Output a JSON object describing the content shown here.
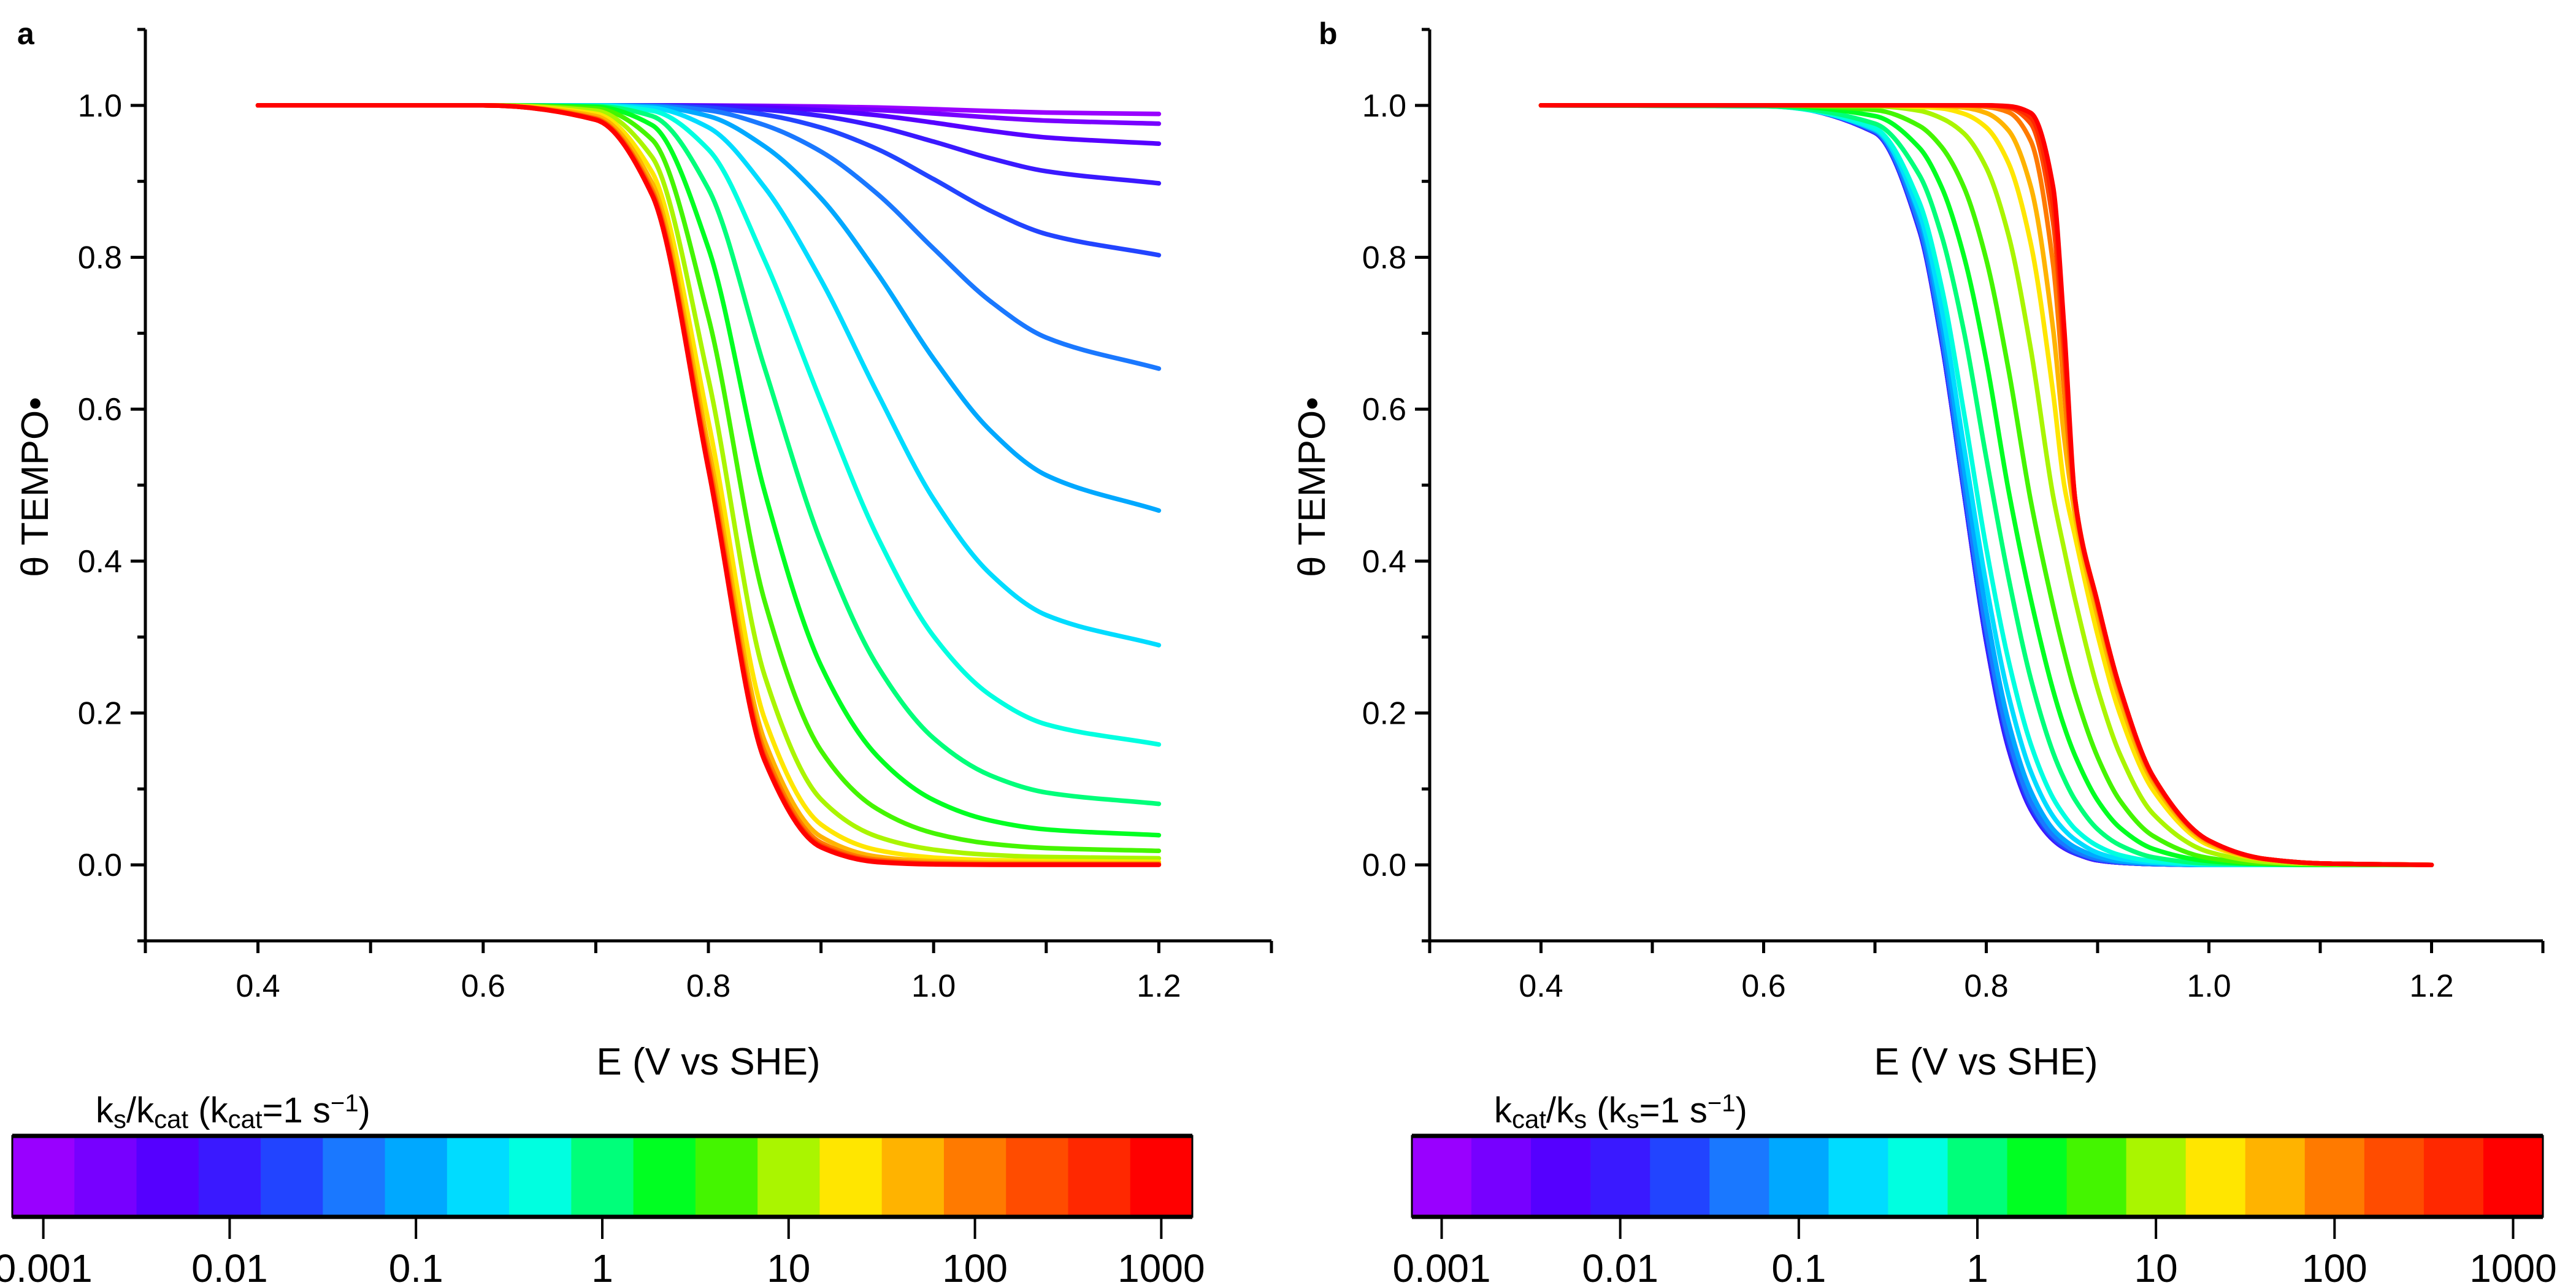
{
  "colors": [
    "#9900FF",
    "#7700FF",
    "#5500FF",
    "#3A19FF",
    "#2244FF",
    "#1A78FF",
    "#00A8FF",
    "#00DCFF",
    "#00FFE0",
    "#00FF7A",
    "#00FF22",
    "#44F500",
    "#AAF500",
    "#FFE600",
    "#FFB300",
    "#FF7A00",
    "#FF4C00",
    "#FF2800",
    "#FF0000"
  ],
  "chart_data": [
    {
      "type": "line",
      "panel_label": "a",
      "xlabel": "E (V vs SHE)",
      "ylabel": "θ TEMPO•",
      "xlim": [
        0.3,
        1.3
      ],
      "ylim": [
        -0.1,
        1.1
      ],
      "xticks": [
        0.4,
        0.6,
        0.8,
        1.0,
        1.2
      ],
      "xtick_labels": [
        "0.4",
        "0.6",
        "0.8",
        "1.0",
        "1.2"
      ],
      "xminor": [
        0.3,
        0.5,
        0.7,
        0.9,
        1.1,
        1.3
      ],
      "yticks": [
        0.0,
        0.2,
        0.4,
        0.6,
        0.8,
        1.0
      ],
      "ytick_labels": [
        "0.0",
        "0.2",
        "0.4",
        "0.6",
        "0.8",
        "1.0"
      ],
      "yminor": [
        -0.1,
        0.1,
        0.3,
        0.5,
        0.7,
        0.9,
        1.1
      ],
      "grid": false,
      "legend": "colorbar-bottom",
      "x": [
        0.4,
        0.6,
        0.7,
        0.75,
        0.8,
        0.85,
        0.9,
        0.95,
        1.0,
        1.05,
        1.1,
        1.2
      ],
      "series": [
        {
          "param": 0.001,
          "values": [
            1,
            1,
            1,
            1,
            0.9999,
            0.9994,
            0.9986,
            0.9972,
            0.995,
            0.9926,
            0.9906,
            0.9887
          ]
        },
        {
          "param": 0.00215,
          "values": [
            1,
            1,
            1,
            1,
            0.9997,
            0.9988,
            0.997,
            0.9939,
            0.9894,
            0.9842,
            0.98,
            0.976
          ]
        },
        {
          "param": 0.00464,
          "values": [
            1,
            1,
            1,
            1,
            0.9993,
            0.9973,
            0.9936,
            0.987,
            0.9773,
            0.9665,
            0.9578,
            0.9496
          ]
        },
        {
          "param": 0.01,
          "values": [
            1,
            1,
            1,
            0.9998,
            0.9986,
            0.9943,
            0.9862,
            0.9724,
            0.9523,
            0.9305,
            0.9133,
            0.8974
          ]
        },
        {
          "param": 0.0215,
          "values": [
            1,
            1,
            1,
            0.9997,
            0.9969,
            0.9878,
            0.9708,
            0.9425,
            0.9029,
            0.8616,
            0.8306,
            0.8028
          ]
        },
        {
          "param": 0.0464,
          "values": [
            1,
            1,
            1,
            0.9993,
            0.9935,
            0.974,
            0.9392,
            0.8836,
            0.8115,
            0.7426,
            0.6943,
            0.6534
          ]
        },
        {
          "param": 0.1,
          "values": [
            1,
            1,
            1,
            0.9985,
            0.986,
            0.946,
            0.8777,
            0.779,
            0.6664,
            0.5724,
            0.5131,
            0.4666
          ]
        },
        {
          "param": 0.215,
          "values": [
            1,
            1,
            0.9998,
            0.9967,
            0.971,
            0.892,
            0.7701,
            0.6214,
            0.4817,
            0.3837,
            0.3289,
            0.2893
          ]
        },
        {
          "param": 0.464,
          "values": [
            1,
            1,
            0.9995,
            0.993,
            0.942,
            0.796,
            0.6101,
            0.4325,
            0.3011,
            0.2239,
            0.1851,
            0.1586
          ]
        },
        {
          "param": 1,
          "values": [
            1,
            1,
            0.999,
            0.986,
            0.89,
            0.654,
            0.4248,
            0.2623,
            0.1668,
            0.1181,
            0.0953,
            0.0804
          ]
        },
        {
          "param": 2.15,
          "values": [
            1,
            1,
            0.998,
            0.974,
            0.812,
            0.491,
            0.2624,
            0.1432,
            0.0854,
            0.0586,
            0.0467,
            0.0391
          ]
        },
        {
          "param": 4.64,
          "values": [
            1,
            1,
            0.996,
            0.955,
            0.721,
            0.347,
            0.1505,
            0.0735,
            0.0417,
            0.028,
            0.0222,
            0.0185
          ]
        },
        {
          "param": 10,
          "values": [
            1,
            1,
            0.993,
            0.932,
            0.64,
            0.249,
            0.0864,
            0.0372,
            0.0201,
            0.0132,
            0.0104,
            0.0087
          ]
        },
        {
          "param": 21.5,
          "values": [
            1,
            1,
            0.989,
            0.912,
            0.584,
            0.192,
            0.0533,
            0.0194,
            0.0097,
            0.0062,
            0.0049,
            0.0041
          ]
        },
        {
          "param": 46.4,
          "values": [
            1,
            1,
            0.986,
            0.898,
            0.551,
            0.163,
            0.037,
            0.0109,
            0.0048,
            0.0029,
            0.0023,
            0.0019
          ]
        },
        {
          "param": 100,
          "values": [
            1,
            1,
            0.983,
            0.889,
            0.535,
            0.149,
            0.0293,
            0.0069,
            0.0025,
            0.0013,
            0.0011,
            0.0009
          ]
        },
        {
          "param": 215,
          "values": [
            1,
            1,
            0.982,
            0.885,
            0.526,
            0.142,
            0.0257,
            0.005,
            0.0014,
            0.0006,
            0.0005,
            0.0004
          ]
        },
        {
          "param": 464,
          "values": [
            1,
            1,
            0.981,
            0.883,
            0.523,
            0.139,
            0.024,
            0.0042,
            0.0009,
            0.0003,
            0.0002,
            0.0002
          ]
        },
        {
          "param": 1000,
          "values": [
            1,
            1,
            0.981,
            0.882,
            0.521,
            0.137,
            0.0232,
            0.0037,
            0.0007,
            0.0001,
            0.0001,
            0.0001
          ]
        }
      ],
      "colorbar": {
        "title_parts": [
          {
            "t": "k"
          },
          {
            "t": "s",
            "sub": true
          },
          {
            "t": "/k"
          },
          {
            "t": "cat",
            "sub": true
          },
          {
            "t": " (k"
          },
          {
            "t": "cat",
            "sub": true
          },
          {
            "t": "=1 s"
          },
          {
            "t": "−1",
            "sup": true
          },
          {
            "t": ")"
          }
        ],
        "tick_labels": [
          "0.001",
          "0.01",
          "0.1",
          "1",
          "10",
          "100",
          "1000"
        ],
        "scale": "log"
      }
    },
    {
      "type": "line",
      "panel_label": "b",
      "xlabel": "E (V vs SHE)",
      "ylabel": "θ TEMPO•",
      "xlim": [
        0.3,
        1.3
      ],
      "ylim": [
        -0.1,
        1.1
      ],
      "xticks": [
        0.4,
        0.6,
        0.8,
        1.0,
        1.2
      ],
      "xtick_labels": [
        "0.4",
        "0.6",
        "0.8",
        "1.0",
        "1.2"
      ],
      "xminor": [
        0.3,
        0.5,
        0.7,
        0.9,
        1.1,
        1.3
      ],
      "yticks": [
        0.0,
        0.2,
        0.4,
        0.6,
        0.8,
        1.0
      ],
      "ytick_labels": [
        "0.0",
        "0.2",
        "0.4",
        "0.6",
        "0.8",
        "1.0"
      ],
      "yminor": [
        -0.1,
        0.1,
        0.3,
        0.5,
        0.7,
        0.9,
        1.1
      ],
      "grid": false,
      "legend": "colorbar-bottom",
      "x": [
        0.4,
        0.6,
        0.7,
        0.74,
        0.76,
        0.78,
        0.8,
        0.82,
        0.84,
        0.86,
        0.87,
        0.88,
        0.9,
        0.92,
        0.95,
        1.0,
        1.05,
        1.1,
        1.2
      ],
      "series": [
        {
          "param": 0.001,
          "values": [
            1,
            1,
            0.964,
            0.835,
            0.688,
            0.49,
            0.294,
            0.153,
            0.073,
            0.033,
            0.022,
            0.015,
            0.006,
            0.003,
            0.001,
            0,
            0,
            0,
            0
          ]
        },
        {
          "param": 0.00215,
          "values": [
            1,
            1,
            0.964,
            0.835,
            0.688,
            0.49,
            0.294,
            0.153,
            0.073,
            0.033,
            0.022,
            0.015,
            0.006,
            0.003,
            0.001,
            0,
            0,
            0,
            0
          ]
        },
        {
          "param": 0.00464,
          "values": [
            1,
            1,
            0.964,
            0.835,
            0.688,
            0.49,
            0.294,
            0.153,
            0.073,
            0.033,
            0.022,
            0.015,
            0.006,
            0.003,
            0.001,
            0,
            0,
            0,
            0
          ]
        },
        {
          "param": 0.01,
          "values": [
            1,
            1,
            0.964,
            0.835,
            0.688,
            0.49,
            0.294,
            0.153,
            0.073,
            0.033,
            0.022,
            0.015,
            0.006,
            0.003,
            0.001,
            0,
            0,
            0,
            0
          ]
        },
        {
          "param": 0.0215,
          "values": [
            1,
            1,
            0.965,
            0.838,
            0.693,
            0.495,
            0.302,
            0.161,
            0.078,
            0.036,
            0.024,
            0.016,
            0.007,
            0.003,
            0.001,
            0,
            0,
            0,
            0
          ]
        },
        {
          "param": 0.0464,
          "values": [
            1,
            1,
            0.966,
            0.841,
            0.697,
            0.5,
            0.31,
            0.168,
            0.083,
            0.039,
            0.027,
            0.018,
            0.008,
            0.004,
            0.001,
            0,
            0,
            0,
            0
          ]
        },
        {
          "param": 0.1,
          "values": [
            1,
            1,
            0.968,
            0.852,
            0.714,
            0.521,
            0.334,
            0.188,
            0.097,
            0.047,
            0.033,
            0.023,
            0.011,
            0.005,
            0.002,
            0,
            0,
            0,
            0
          ]
        },
        {
          "param": 0.215,
          "values": [
            1,
            0.999,
            0.968,
            0.858,
            0.731,
            0.55,
            0.369,
            0.223,
            0.123,
            0.064,
            0.046,
            0.033,
            0.016,
            0.008,
            0.003,
            0,
            0,
            0,
            0
          ]
        },
        {
          "param": 0.464,
          "values": [
            1,
            0.999,
            0.97,
            0.872,
            0.76,
            0.595,
            0.417,
            0.269,
            0.159,
            0.088,
            0.065,
            0.047,
            0.025,
            0.013,
            0.005,
            0.001,
            0,
            0,
            0
          ]
        },
        {
          "param": 1,
          "values": [
            1,
            0.999,
            0.976,
            0.908,
            0.828,
            0.702,
            0.536,
            0.378,
            0.245,
            0.148,
            0.113,
            0.085,
            0.047,
            0.026,
            0.01,
            0.002,
            0.001,
            0,
            0
          ]
        },
        {
          "param": 2.15,
          "values": [
            1,
            1,
            0.986,
            0.944,
            0.892,
            0.801,
            0.664,
            0.493,
            0.35,
            0.23,
            0.182,
            0.143,
            0.085,
            0.049,
            0.021,
            0.005,
            0.001,
            0,
            0
          ]
        },
        {
          "param": 4.64,
          "values": [
            1,
            1,
            0.994,
            0.973,
            0.945,
            0.892,
            0.797,
            0.652,
            0.479,
            0.341,
            0.28,
            0.226,
            0.142,
            0.085,
            0.038,
            0.009,
            0.002,
            0.001,
            0
          ]
        },
        {
          "param": 10,
          "values": [
            1,
            1,
            0.999,
            0.993,
            0.983,
            0.963,
            0.918,
            0.829,
            0.679,
            0.486,
            0.415,
            0.348,
            0.232,
            0.146,
            0.067,
            0.017,
            0.004,
            0.001,
            0
          ]
        },
        {
          "param": 21.5,
          "values": [
            1,
            1,
            1,
            0.998,
            0.996,
            0.989,
            0.971,
            0.924,
            0.818,
            0.622,
            0.5,
            0.431,
            0.303,
            0.199,
            0.098,
            0.026,
            0.007,
            0.002,
            0
          ]
        },
        {
          "param": 46.4,
          "values": [
            1,
            1,
            1,
            1,
            0.999,
            0.997,
            0.99,
            0.967,
            0.893,
            0.706,
            0.562,
            0.458,
            0.327,
            0.218,
            0.108,
            0.029,
            0.007,
            0.002,
            0
          ]
        },
        {
          "param": 100,
          "values": [
            1,
            1,
            1,
            1,
            1,
            1,
            0.998,
            0.991,
            0.953,
            0.791,
            0.622,
            0.472,
            0.339,
            0.228,
            0.113,
            0.031,
            0.008,
            0.002,
            0
          ]
        },
        {
          "param": 215,
          "values": [
            1,
            1,
            1,
            1,
            1,
            1,
            1,
            0.997,
            0.976,
            0.846,
            0.668,
            0.479,
            0.345,
            0.233,
            0.116,
            0.032,
            0.008,
            0.002,
            0
          ]
        },
        {
          "param": 464,
          "values": [
            1,
            1,
            1,
            1,
            1,
            1,
            1,
            0.998,
            0.984,
            0.869,
            0.686,
            0.479,
            0.345,
            0.233,
            0.116,
            0.032,
            0.008,
            0.002,
            0
          ]
        },
        {
          "param": 1000,
          "values": [
            1,
            1,
            1,
            1,
            1,
            1,
            1,
            0.999,
            0.99,
            0.893,
            0.706,
            0.479,
            0.345,
            0.233,
            0.116,
            0.032,
            0.008,
            0.002,
            0
          ]
        }
      ],
      "colorbar": {
        "title_parts": [
          {
            "t": "k"
          },
          {
            "t": "cat",
            "sub": true
          },
          {
            "t": "/k"
          },
          {
            "t": "s",
            "sub": true
          },
          {
            "t": " (k"
          },
          {
            "t": "s",
            "sub": true
          },
          {
            "t": "=1 s"
          },
          {
            "t": "−1",
            "sup": true
          },
          {
            "t": ")"
          }
        ],
        "tick_labels": [
          "0.001",
          "0.01",
          "0.1",
          "1",
          "10",
          "100",
          "1000"
        ],
        "scale": "log"
      }
    }
  ]
}
